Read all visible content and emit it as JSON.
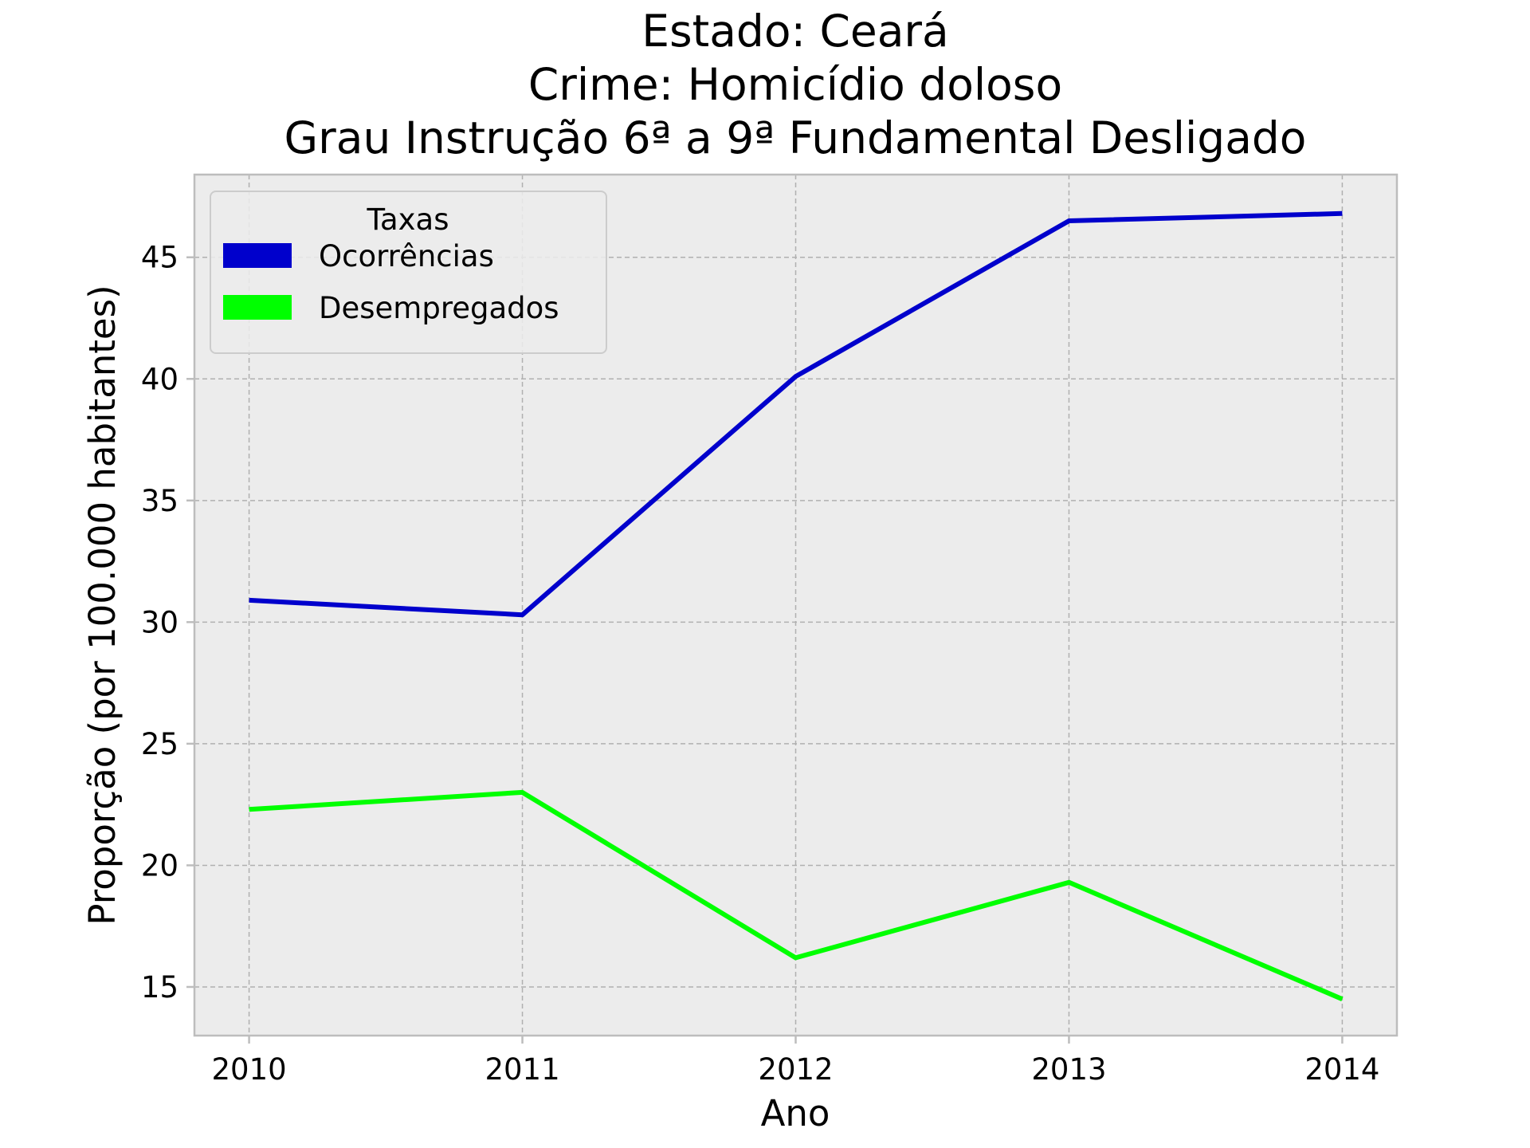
{
  "chart_data": {
    "type": "line",
    "title_lines": [
      "Estado: Ceará",
      "Crime: Homicídio doloso",
      "Grau Instrução  6ª a 9ª Fundamental   Desligado"
    ],
    "xlabel": "Ano",
    "ylabel": "Proporção (por 100.000 habitantes)",
    "x": [
      2010,
      2011,
      2012,
      2013,
      2014
    ],
    "x_tick_labels": [
      "2010",
      "2011",
      "2012",
      "2013",
      "2014"
    ],
    "y_ticks": [
      15,
      20,
      25,
      30,
      35,
      40,
      45
    ],
    "y_tick_labels": [
      "15",
      "20",
      "25",
      "30",
      "35",
      "40",
      "45"
    ],
    "xlim": [
      2009.8,
      2014.2
    ],
    "ylim": [
      13.0,
      48.4
    ],
    "grid": true,
    "legend": {
      "title": "Taxas",
      "placement": "upper-left"
    },
    "series": [
      {
        "name": "Ocorrências",
        "color": "#0000cc",
        "values": [
          30.9,
          30.3,
          40.1,
          46.5,
          46.8
        ]
      },
      {
        "name": "Desempregados",
        "color": "#00ff00",
        "values": [
          22.3,
          23.0,
          16.2,
          19.3,
          14.5
        ]
      }
    ],
    "plot_background": "#ececec",
    "grid_color": "#b0b0b0",
    "frame_color": "#bdbdbd"
  }
}
